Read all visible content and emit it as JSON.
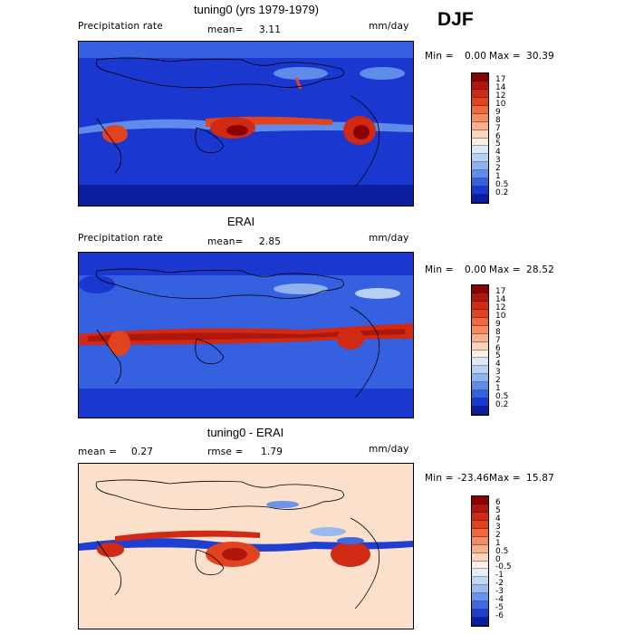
{
  "season": "DJF",
  "panels": [
    {
      "title": "tuning0 (yrs 1979-1979)",
      "left_label": "Precipitation rate",
      "mean_label": "mean=",
      "mean_value": "3.11",
      "units": "mm/day",
      "min_label": "Min =",
      "min_value": "0.00",
      "max_label": "Max =",
      "max_value": "30.39",
      "colorbar": {
        "labels": [
          "17",
          "14",
          "12",
          "10",
          "9",
          "8",
          "7",
          "6",
          "5",
          "4",
          "3",
          "2",
          "1",
          "0.5",
          "0.2"
        ],
        "colors": [
          "#8b0000",
          "#b0170c",
          "#d12a14",
          "#e2431f",
          "#ee6840",
          "#f38c63",
          "#f6b08d",
          "#fad5bd",
          "#fdf0e3",
          "#dbe8f8",
          "#b7d0f4",
          "#8fb2ef",
          "#5f8ce8",
          "#3560e0",
          "#1a38cf",
          "#0c1ea0"
        ]
      },
      "field_type": "model"
    },
    {
      "title": "ERAI",
      "left_label": "Precipitation rate",
      "mean_label": "mean=",
      "mean_value": "2.85",
      "units": "mm/day",
      "min_label": "Min =",
      "min_value": "0.00",
      "max_label": "Max =",
      "max_value": "28.52",
      "colorbar": {
        "labels": [
          "17",
          "14",
          "12",
          "10",
          "9",
          "8",
          "7",
          "6",
          "5",
          "4",
          "3",
          "2",
          "1",
          "0.5",
          "0.2"
        ],
        "colors": [
          "#8b0000",
          "#b0170c",
          "#d12a14",
          "#e2431f",
          "#ee6840",
          "#f38c63",
          "#f6b08d",
          "#fad5bd",
          "#fdf0e3",
          "#dbe8f8",
          "#b7d0f4",
          "#8fb2ef",
          "#5f8ce8",
          "#3560e0",
          "#1a38cf",
          "#0c1ea0"
        ]
      },
      "field_type": "obs"
    },
    {
      "title": "tuning0 - ERAI",
      "left_label": "mean =",
      "left_value": "0.27",
      "mean_label": "rmse =",
      "mean_value": "1.79",
      "units": "mm/day",
      "min_label": "Min =",
      "min_value": "-23.46",
      "max_label": "Max =",
      "max_value": "15.87",
      "colorbar": {
        "labels": [
          "6",
          "5",
          "4",
          "3",
          "2",
          "1",
          "0.5",
          "0",
          "-0.5",
          "-1",
          "-2",
          "-3",
          "-4",
          "-5",
          "-6"
        ],
        "colors": [
          "#8b0000",
          "#b0170c",
          "#d12a14",
          "#e2431f",
          "#ee6840",
          "#f38c63",
          "#f6b08d",
          "#fad5bd",
          "#fdf0e3",
          "#e6eefa",
          "#c3d6f5",
          "#9ab9f0",
          "#6b93e9",
          "#3f68e1",
          "#1f3fd1",
          "#0c1ea0"
        ]
      },
      "field_type": "diff"
    }
  ]
}
